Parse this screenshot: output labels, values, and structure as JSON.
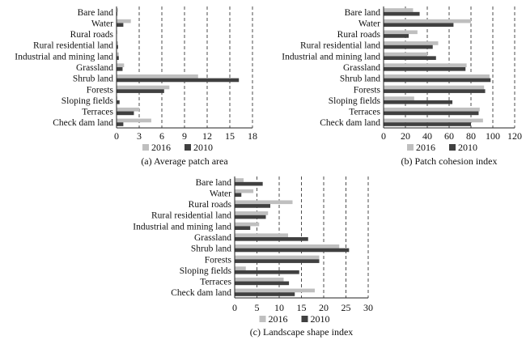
{
  "chart_data": [
    {
      "type": "bar",
      "orientation": "horizontal",
      "caption": "(a) Average patch area",
      "categories": [
        "Bare land",
        "Water",
        "Rural roads",
        "Rural residential land",
        "Industrial and mining land",
        "Grassland",
        "Shrub land",
        "Forests",
        "Sloping fields",
        "Terraces",
        "Check dam land"
      ],
      "series": [
        {
          "name": "2016",
          "color": "#bfbfbf",
          "values": [
            0.2,
            1.9,
            0.1,
            0.2,
            0.3,
            1.0,
            10.8,
            7.0,
            0.1,
            3.0,
            4.6
          ]
        },
        {
          "name": "2010",
          "color": "#404040",
          "values": [
            0.1,
            0.9,
            0.05,
            0.2,
            0.3,
            0.8,
            16.2,
            6.3,
            0.4,
            2.3,
            0.9
          ]
        }
      ],
      "xlim": [
        0,
        18
      ],
      "xticks": [
        "0",
        "3",
        "6",
        "9",
        "12",
        "15",
        "18"
      ],
      "grid": "vertical dashed",
      "legend": "bottom"
    },
    {
      "type": "bar",
      "orientation": "horizontal",
      "caption": "(b) Patch cohesion index",
      "categories": [
        "Bare land",
        "Water",
        "Rural roads",
        "Rural residential land",
        "Industrial and mining land",
        "Grassland",
        "Shrub land",
        "Forests",
        "Sloping fields",
        "Terraces",
        "Check dam land"
      ],
      "series": [
        {
          "name": "2016",
          "color": "#bfbfbf",
          "values": [
            27,
            80,
            31,
            50,
            40,
            76,
            97,
            92,
            28,
            88,
            91
          ]
        },
        {
          "name": "2010",
          "color": "#404040",
          "values": [
            33,
            64,
            23,
            45,
            48,
            75,
            98,
            93,
            63,
            87,
            80
          ]
        }
      ],
      "xlim": [
        0,
        120
      ],
      "xticks": [
        "0",
        "20",
        "40",
        "60",
        "80",
        "100",
        "120"
      ],
      "grid": "vertical dashed",
      "legend": "bottom"
    },
    {
      "type": "bar",
      "orientation": "horizontal",
      "caption": "(c) Landscape shape index",
      "categories": [
        "Bare land",
        "Water",
        "Rural roads",
        "Rural residential land",
        "Industrial and mining land",
        "Grassland",
        "Shrub land",
        "Forests",
        "Sloping fields",
        "Terraces",
        "Check dam land"
      ],
      "series": [
        {
          "name": "2016",
          "color": "#bfbfbf",
          "values": [
            2.0,
            4.2,
            13.0,
            7.5,
            5.5,
            12.0,
            23.5,
            19.0,
            2.5,
            11.0,
            18.0
          ]
        },
        {
          "name": "2010",
          "color": "#404040",
          "values": [
            6.3,
            1.5,
            8.0,
            7.0,
            3.5,
            16.5,
            25.7,
            19.0,
            14.5,
            12.2,
            13.5
          ]
        }
      ],
      "xlim": [
        0,
        30
      ],
      "xticks": [
        "0",
        "5",
        "10",
        "15",
        "20",
        "25",
        "30"
      ],
      "grid": "vertical dashed",
      "legend": "bottom"
    }
  ]
}
